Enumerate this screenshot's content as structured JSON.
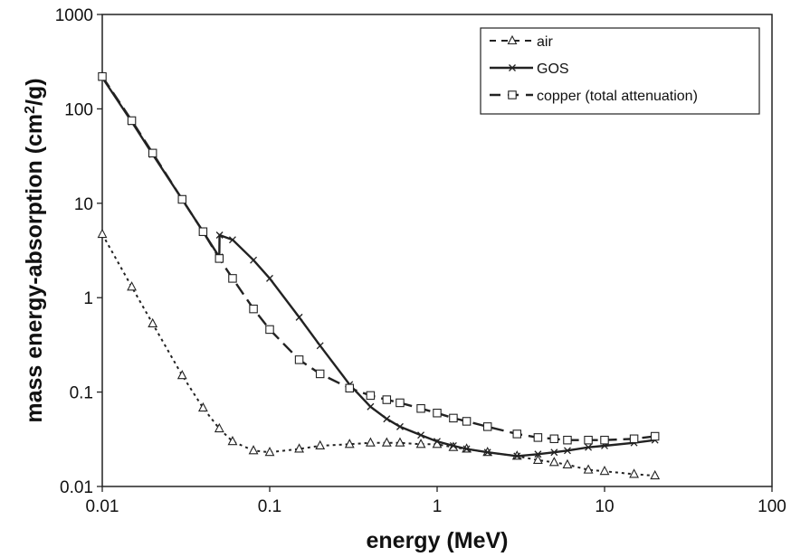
{
  "chart_data": {
    "type": "line",
    "xlabel": "energy (MeV)",
    "ylabel_main": "mass energy-absorption (cm",
    "ylabel_sup": "2",
    "ylabel_end": "/g)",
    "x_scale": "log",
    "y_scale": "log",
    "xlim": [
      0.01,
      100
    ],
    "ylim": [
      0.01,
      1000
    ],
    "x_ticks": [
      "0.01",
      "0.1",
      "1",
      "10",
      "100"
    ],
    "y_ticks": [
      "0.01",
      "0.1",
      "1",
      "10",
      "100",
      "1000"
    ],
    "grid": false,
    "legend_position": "top-right",
    "series": [
      {
        "name": "air",
        "line": "dotted",
        "marker": "triangle",
        "x": [
          0.01,
          0.015,
          0.02,
          0.03,
          0.04,
          0.05,
          0.06,
          0.08,
          0.1,
          0.15,
          0.2,
          0.3,
          0.4,
          0.5,
          0.6,
          0.8,
          1,
          1.25,
          1.5,
          2,
          3,
          4,
          5,
          6,
          8,
          10,
          15,
          20
        ],
        "y": [
          4.7,
          1.3,
          0.53,
          0.15,
          0.068,
          0.041,
          0.03,
          0.024,
          0.023,
          0.025,
          0.027,
          0.028,
          0.029,
          0.029,
          0.029,
          0.028,
          0.028,
          0.026,
          0.025,
          0.023,
          0.021,
          0.019,
          0.018,
          0.017,
          0.015,
          0.0145,
          0.0135,
          0.013
        ]
      },
      {
        "name": "GOS",
        "line": "solid",
        "marker": "x",
        "x": [
          0.01,
          0.015,
          0.02,
          0.03,
          0.04,
          0.05,
          0.0502,
          0.06,
          0.08,
          0.1,
          0.15,
          0.2,
          0.3,
          0.4,
          0.5,
          0.6,
          0.8,
          1,
          1.25,
          1.5,
          2,
          3,
          4,
          5,
          6,
          8,
          10,
          15,
          20
        ],
        "y": [
          215,
          73,
          33,
          11,
          5,
          2.7,
          4.6,
          4.1,
          2.5,
          1.6,
          0.62,
          0.31,
          0.12,
          0.07,
          0.052,
          0.043,
          0.035,
          0.03,
          0.027,
          0.025,
          0.023,
          0.021,
          0.022,
          0.023,
          0.024,
          0.026,
          0.027,
          0.029,
          0.031
        ]
      },
      {
        "name": "copper (total attenuation)",
        "line": "dashed",
        "marker": "square",
        "x": [
          0.01,
          0.015,
          0.02,
          0.03,
          0.04,
          0.05,
          0.06,
          0.08,
          0.1,
          0.15,
          0.2,
          0.3,
          0.4,
          0.5,
          0.6,
          0.8,
          1,
          1.25,
          1.5,
          2,
          3,
          4,
          5,
          6,
          8,
          10,
          15,
          20
        ],
        "y": [
          220,
          75,
          34,
          11,
          5,
          2.6,
          1.6,
          0.76,
          0.46,
          0.22,
          0.156,
          0.11,
          0.092,
          0.083,
          0.077,
          0.067,
          0.06,
          0.053,
          0.049,
          0.043,
          0.036,
          0.033,
          0.032,
          0.031,
          0.031,
          0.031,
          0.032,
          0.034
        ]
      }
    ]
  }
}
